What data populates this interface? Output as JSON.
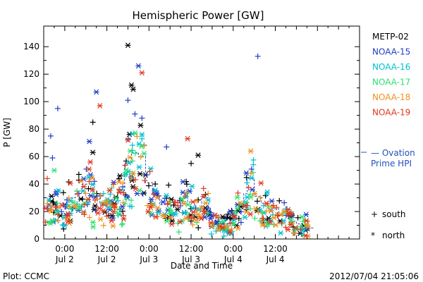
{
  "chart_data": {
    "type": "scatter",
    "title": "Hemispheric Power [GW]",
    "ylabel": "P [GW]",
    "xlabel": "Date and Time",
    "ylim": [
      0,
      155
    ],
    "yticks": [
      0,
      20,
      40,
      60,
      80,
      100,
      120,
      140
    ],
    "xlim_hours": [
      -6,
      84
    ],
    "xticks": [
      {
        "time": "0:00",
        "date": "Jul 2",
        "hour": 0
      },
      {
        "time": "12:00",
        "date": "Jul 2",
        "hour": 12
      },
      {
        "time": "0:00",
        "date": "Jul 3",
        "hour": 24
      },
      {
        "time": "12:00",
        "date": "Jul 3",
        "hour": 36
      },
      {
        "time": "0:00",
        "date": "Jul 4",
        "hour": 48
      },
      {
        "time": "12:00",
        "date": "Jul 4",
        "hour": 60
      }
    ],
    "grid": false,
    "legend_position": "right",
    "series": [
      {
        "name": "METP-02",
        "color": "#000000",
        "seed": 11,
        "scale": 1.0,
        "points": [
          {
            "x": 8,
            "y": 63,
            "m": "*"
          },
          {
            "x": 8,
            "y": 85,
            "m": "+"
          },
          {
            "x": 18,
            "y": 141,
            "m": "*"
          },
          {
            "x": 19,
            "y": 112,
            "m": "*"
          },
          {
            "x": 19.5,
            "y": 109,
            "m": "*"
          },
          {
            "x": 38,
            "y": 61,
            "m": "*"
          },
          {
            "x": 36,
            "y": 55,
            "m": "+"
          },
          {
            "x": 4,
            "y": 47,
            "m": "+"
          }
        ]
      },
      {
        "name": "NOAA-15",
        "color": "#1f3cc8",
        "seed": 23,
        "scale": 1.0,
        "points": [
          {
            "x": -4,
            "y": 75,
            "m": "+"
          },
          {
            "x": -2,
            "y": 95,
            "m": "+"
          },
          {
            "x": -3.5,
            "y": 59,
            "m": "+"
          },
          {
            "x": 7,
            "y": 71,
            "m": "*"
          },
          {
            "x": 9,
            "y": 107,
            "m": "*"
          },
          {
            "x": 18,
            "y": 101,
            "m": "+"
          },
          {
            "x": 20,
            "y": 91,
            "m": "+"
          },
          {
            "x": 21,
            "y": 126,
            "m": "*"
          },
          {
            "x": 22,
            "y": 88,
            "m": "+"
          },
          {
            "x": 29,
            "y": 67,
            "m": "+"
          },
          {
            "x": 55,
            "y": 133,
            "m": "+"
          }
        ]
      },
      {
        "name": "NOAA-16",
        "color": "#00c0d0",
        "seed": 37,
        "scale": 0.9,
        "points": [
          {
            "x": 22,
            "y": 76,
            "m": "*"
          },
          {
            "x": 22,
            "y": 73,
            "m": "+"
          }
        ]
      },
      {
        "name": "NOAA-17",
        "color": "#30e070",
        "seed": 41,
        "scale": 0.85,
        "points": [
          {
            "x": -3,
            "y": 50,
            "m": "*"
          }
        ]
      },
      {
        "name": "NOAA-18",
        "color": "#f09020",
        "seed": 53,
        "scale": 0.9,
        "points": [
          {
            "x": 53,
            "y": 64,
            "m": "*"
          }
        ]
      },
      {
        "name": "NOAA-19",
        "color": "#e03820",
        "seed": 67,
        "scale": 0.95,
        "points": [
          {
            "x": 10,
            "y": 97,
            "m": "*"
          },
          {
            "x": 22,
            "y": 121,
            "m": "*"
          },
          {
            "x": 35,
            "y": 73,
            "m": "*"
          },
          {
            "x": 18,
            "y": 72,
            "m": "*"
          },
          {
            "x": -5,
            "y": 44,
            "m": "+"
          }
        ]
      }
    ],
    "model": {
      "name": "Ovation Prime HPI",
      "color": "#2050c0",
      "steps": [
        [
          -6,
          24
        ],
        [
          -2,
          26
        ],
        [
          1,
          30
        ],
        [
          3,
          35
        ],
        [
          5,
          40
        ],
        [
          8,
          33
        ],
        [
          10,
          26
        ],
        [
          13,
          28
        ],
        [
          15,
          34
        ],
        [
          17,
          55
        ],
        [
          19,
          63
        ],
        [
          21,
          60
        ],
        [
          23,
          41
        ],
        [
          25,
          32
        ],
        [
          27,
          25
        ],
        [
          30,
          24
        ],
        [
          33,
          30
        ],
        [
          35,
          27
        ],
        [
          37,
          22
        ],
        [
          39,
          30
        ],
        [
          41,
          19
        ],
        [
          43,
          12
        ],
        [
          45,
          11
        ],
        [
          47,
          17
        ],
        [
          49,
          25
        ],
        [
          51,
          33
        ],
        [
          52,
          44
        ],
        [
          54,
          31
        ],
        [
          56,
          26
        ],
        [
          58,
          22
        ],
        [
          61,
          17
        ],
        [
          64,
          13
        ],
        [
          66,
          11
        ],
        [
          69,
          8
        ]
      ],
      "label_lines": [
        "— Ovation",
        "Prime HPI"
      ]
    },
    "marker_legend": [
      {
        "symbol": "+",
        "label": "south"
      },
      {
        "symbol": "*",
        "label": "north"
      }
    ]
  },
  "footer": {
    "left": "Plot: CCMC",
    "right": "2012/07/04 21:05:06"
  }
}
